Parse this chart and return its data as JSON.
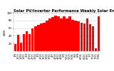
{
  "title": "Solar PV/Inverter Performance Weekly Solar Energy Production",
  "ylabel": "kWh",
  "background_color": "#ffffff",
  "plot_bg_color": "#ffffff",
  "grid_color": "#cccccc",
  "bar_color": "#ff0000",
  "categories": [
    "1/6",
    "1/13",
    "1/20",
    "1/27",
    "2/3",
    "2/10",
    "2/17",
    "2/24",
    "3/3",
    "3/10",
    "3/17",
    "3/24",
    "3/31",
    "4/7",
    "4/14",
    "4/21",
    "4/28",
    "5/5",
    "5/12",
    "5/19",
    "5/26",
    "6/2",
    "6/9",
    "6/16",
    "6/23",
    "6/30",
    "7/7",
    "7/14",
    "7/21",
    "7/28"
  ],
  "values": [
    18,
    42,
    22,
    45,
    52,
    45,
    60,
    65,
    68,
    72,
    75,
    80,
    85,
    88,
    92,
    90,
    85,
    90,
    85,
    90,
    82,
    80,
    78,
    75,
    72,
    85,
    70,
    65,
    8,
    90
  ],
  "ylim": [
    0,
    100
  ],
  "yticks": [
    20,
    40,
    60,
    80,
    100
  ],
  "title_fontsize": 3.8,
  "label_fontsize": 3.2,
  "tick_fontsize": 2.8
}
